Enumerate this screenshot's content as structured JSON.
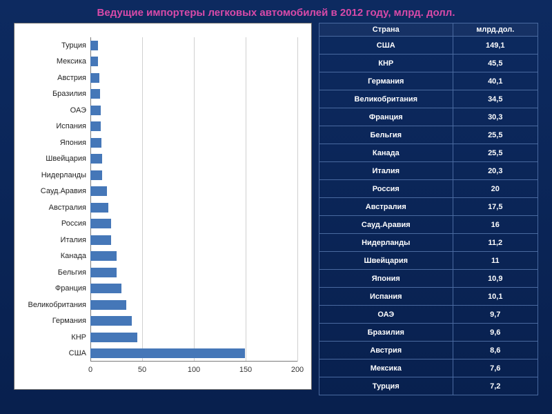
{
  "title": {
    "text": "Ведущие импортеры легковых автомобилей в 2012 году, млрд. долл.",
    "color": "#d84aa8",
    "fontsize": 15
  },
  "chart": {
    "type": "bar-horizontal",
    "background": "#ffffff",
    "bar_color": "#4577b8",
    "grid_color": "#d0d0d0",
    "axis_color": "#7a7a7a",
    "label_color": "#222222",
    "tick_font_size": 11,
    "label_font_size": 11,
    "xlim": [
      0,
      200
    ],
    "xticks": [
      0,
      50,
      100,
      150,
      200
    ],
    "categories": [
      "Турция",
      "Мексика",
      "Австрия",
      "Бразилия",
      "ОАЭ",
      "Испания",
      "Япония",
      "Швейцария",
      "Нидерланды",
      "Сауд.Аравия",
      "Австралия",
      "Россия",
      "Италия",
      "Канада",
      "Бельгия",
      "Франция",
      "Великобритания",
      "Германия",
      "КНР",
      "США"
    ],
    "values": [
      7.2,
      7.6,
      8.6,
      9.6,
      9.7,
      10.1,
      10.9,
      11,
      11.2,
      16,
      17.5,
      20,
      20.3,
      25.5,
      25.5,
      30.3,
      34.5,
      40.1,
      45.5,
      149.1
    ]
  },
  "table": {
    "header_country": "Страна",
    "header_value": "млрд.дол.",
    "text_color": "#ffffff",
    "border_color": "#4a6aa0",
    "rows": [
      {
        "country": "США",
        "value": "149,1"
      },
      {
        "country": "КНР",
        "value": "45,5"
      },
      {
        "country": "Германия",
        "value": "40,1"
      },
      {
        "country": "Великобритания",
        "value": "34,5"
      },
      {
        "country": "Франция",
        "value": "30,3"
      },
      {
        "country": "Бельгия",
        "value": "25,5"
      },
      {
        "country": "Канада",
        "value": "25,5"
      },
      {
        "country": "Италия",
        "value": "20,3"
      },
      {
        "country": "Россия",
        "value": "20"
      },
      {
        "country": "Австралия",
        "value": "17,5"
      },
      {
        "country": "Сауд.Аравия",
        "value": "16"
      },
      {
        "country": "Нидерланды",
        "value": "11,2"
      },
      {
        "country": "Швейцария",
        "value": "11"
      },
      {
        "country": "Япония",
        "value": "10,9"
      },
      {
        "country": "Испания",
        "value": "10,1"
      },
      {
        "country": "ОАЭ",
        "value": "9,7"
      },
      {
        "country": "Бразилия",
        "value": "9,6"
      },
      {
        "country": "Австрия",
        "value": "8,6"
      },
      {
        "country": "Мексика",
        "value": "7,6"
      },
      {
        "country": "Турция",
        "value": "7,2"
      }
    ]
  }
}
